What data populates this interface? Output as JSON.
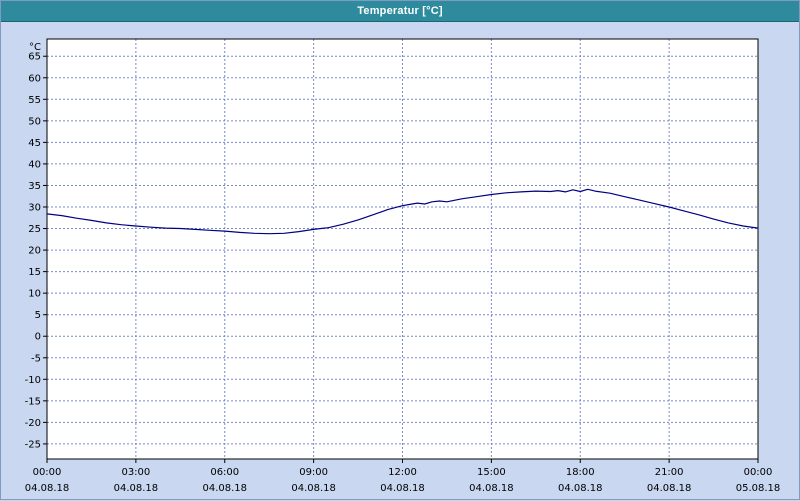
{
  "window": {
    "title": "Temperatur [°C]"
  },
  "colors": {
    "window_bg": "#c9d7f1",
    "titlebar_bg": "#2e8b9d",
    "titlebar_text": "#ffffff",
    "plot_bg": "#ffffff",
    "plot_border": "#000000",
    "grid": "#7788cc",
    "axis_text": "#000000",
    "series": "#000080"
  },
  "chart_data": {
    "type": "line",
    "title": "Temperatur [°C]",
    "ylabel": "°C",
    "unit_label": "°C",
    "grid": true,
    "legend": "none",
    "xlim_hours": [
      0,
      24
    ],
    "ylim": [
      -28.5,
      69
    ],
    "y_ticks": [
      65,
      60,
      55,
      50,
      45,
      40,
      35,
      30,
      25,
      20,
      15,
      10,
      5,
      0,
      -5,
      -10,
      -15,
      -20,
      -25
    ],
    "x_ticks": [
      {
        "hour": 0,
        "time": "00:00",
        "date": "04.08.18"
      },
      {
        "hour": 3,
        "time": "03:00",
        "date": "04.08.18"
      },
      {
        "hour": 6,
        "time": "06:00",
        "date": "04.08.18"
      },
      {
        "hour": 9,
        "time": "09:00",
        "date": "04.08.18"
      },
      {
        "hour": 12,
        "time": "12:00",
        "date": "04.08.18"
      },
      {
        "hour": 15,
        "time": "15:00",
        "date": "04.08.18"
      },
      {
        "hour": 18,
        "time": "18:00",
        "date": "04.08.18"
      },
      {
        "hour": 21,
        "time": "21:00",
        "date": "04.08.18"
      },
      {
        "hour": 24,
        "time": "00:00",
        "date": "05.08.18"
      }
    ],
    "series": [
      {
        "name": "Temperatur",
        "color": "#000080",
        "points": [
          [
            0,
            28.4
          ],
          [
            0.5,
            28.0
          ],
          [
            1,
            27.4
          ],
          [
            1.5,
            26.9
          ],
          [
            2,
            26.3
          ],
          [
            2.5,
            25.9
          ],
          [
            3,
            25.6
          ],
          [
            3.5,
            25.3
          ],
          [
            4,
            25.1
          ],
          [
            4.5,
            25.0
          ],
          [
            5,
            24.8
          ],
          [
            5.5,
            24.6
          ],
          [
            6,
            24.4
          ],
          [
            6.5,
            24.1
          ],
          [
            7,
            23.9
          ],
          [
            7.5,
            23.8
          ],
          [
            8,
            23.9
          ],
          [
            8.5,
            24.3
          ],
          [
            9,
            24.8
          ],
          [
            9.25,
            25.0
          ],
          [
            9.5,
            25.2
          ],
          [
            10,
            26.0
          ],
          [
            10.5,
            27.0
          ],
          [
            11,
            28.2
          ],
          [
            11.5,
            29.4
          ],
          [
            12,
            30.3
          ],
          [
            12.25,
            30.6
          ],
          [
            12.5,
            30.9
          ],
          [
            12.75,
            30.7
          ],
          [
            13,
            31.2
          ],
          [
            13.25,
            31.4
          ],
          [
            13.5,
            31.2
          ],
          [
            14,
            31.9
          ],
          [
            14.5,
            32.4
          ],
          [
            15,
            32.9
          ],
          [
            15.5,
            33.3
          ],
          [
            16,
            33.5
          ],
          [
            16.5,
            33.7
          ],
          [
            17,
            33.6
          ],
          [
            17.25,
            33.8
          ],
          [
            17.5,
            33.5
          ],
          [
            17.75,
            34.0
          ],
          [
            18,
            33.6
          ],
          [
            18.25,
            34.1
          ],
          [
            18.5,
            33.7
          ],
          [
            19,
            33.2
          ],
          [
            19.5,
            32.4
          ],
          [
            20,
            31.6
          ],
          [
            20.5,
            30.8
          ],
          [
            21,
            30.0
          ],
          [
            21.5,
            29.1
          ],
          [
            22,
            28.2
          ],
          [
            22.5,
            27.2
          ],
          [
            23,
            26.3
          ],
          [
            23.5,
            25.6
          ],
          [
            24,
            25.1
          ]
        ]
      }
    ]
  }
}
